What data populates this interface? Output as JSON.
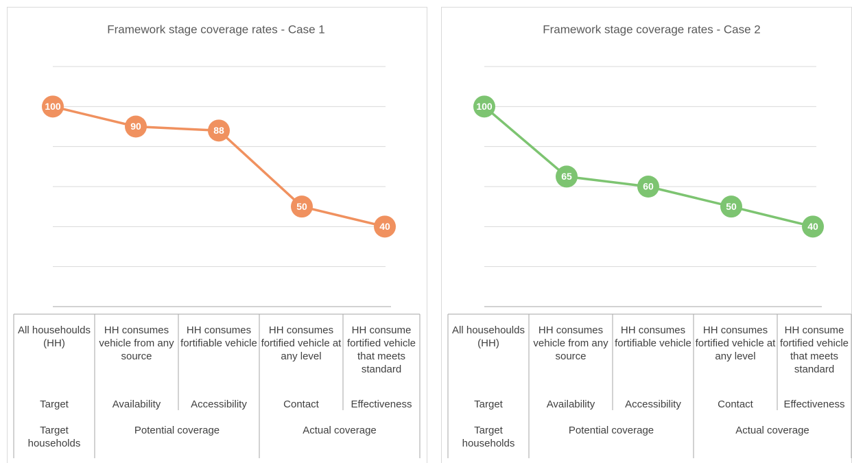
{
  "chart_data": [
    {
      "type": "line",
      "title": "Framework stage coverage rates - Case 1",
      "categories": [
        "All househoulds (HH)",
        "HH consumes vehicle from any source",
        "HH consumes fortifiable vehicle",
        "HH consumes fortified vehicle at any level",
        "HH consume fortified vehicle that meets standard"
      ],
      "stages": [
        "Target",
        "Availability",
        "Accessibility",
        "Contact",
        "Effectiveness"
      ],
      "groups": [
        "Target households",
        "Potential coverage",
        "Actual coverage"
      ],
      "series": [
        {
          "name": "Case 1",
          "color": "#f0915f",
          "values": [
            100,
            90,
            88,
            50,
            40
          ]
        }
      ],
      "ylim": [
        0,
        120
      ],
      "yticks": [
        0,
        20,
        40,
        60,
        80,
        100,
        120
      ],
      "grid": true
    },
    {
      "type": "line",
      "title": "Framework stage coverage rates - Case 2",
      "categories": [
        "All househoulds (HH)",
        "HH consumes vehicle from any source",
        "HH consumes fortifiable vehicle",
        "HH consumes fortified vehicle at any level",
        "HH consume fortified vehicle that meets standard"
      ],
      "stages": [
        "Target",
        "Availability",
        "Accessibility",
        "Contact",
        "Effectiveness"
      ],
      "groups": [
        "Target households",
        "Potential coverage",
        "Actual coverage"
      ],
      "series": [
        {
          "name": "Case 2",
          "color": "#7dc471",
          "values": [
            100,
            65,
            60,
            50,
            40
          ]
        }
      ],
      "ylim": [
        0,
        120
      ],
      "yticks": [
        0,
        20,
        40,
        60,
        80,
        100,
        120
      ],
      "grid": true
    }
  ]
}
